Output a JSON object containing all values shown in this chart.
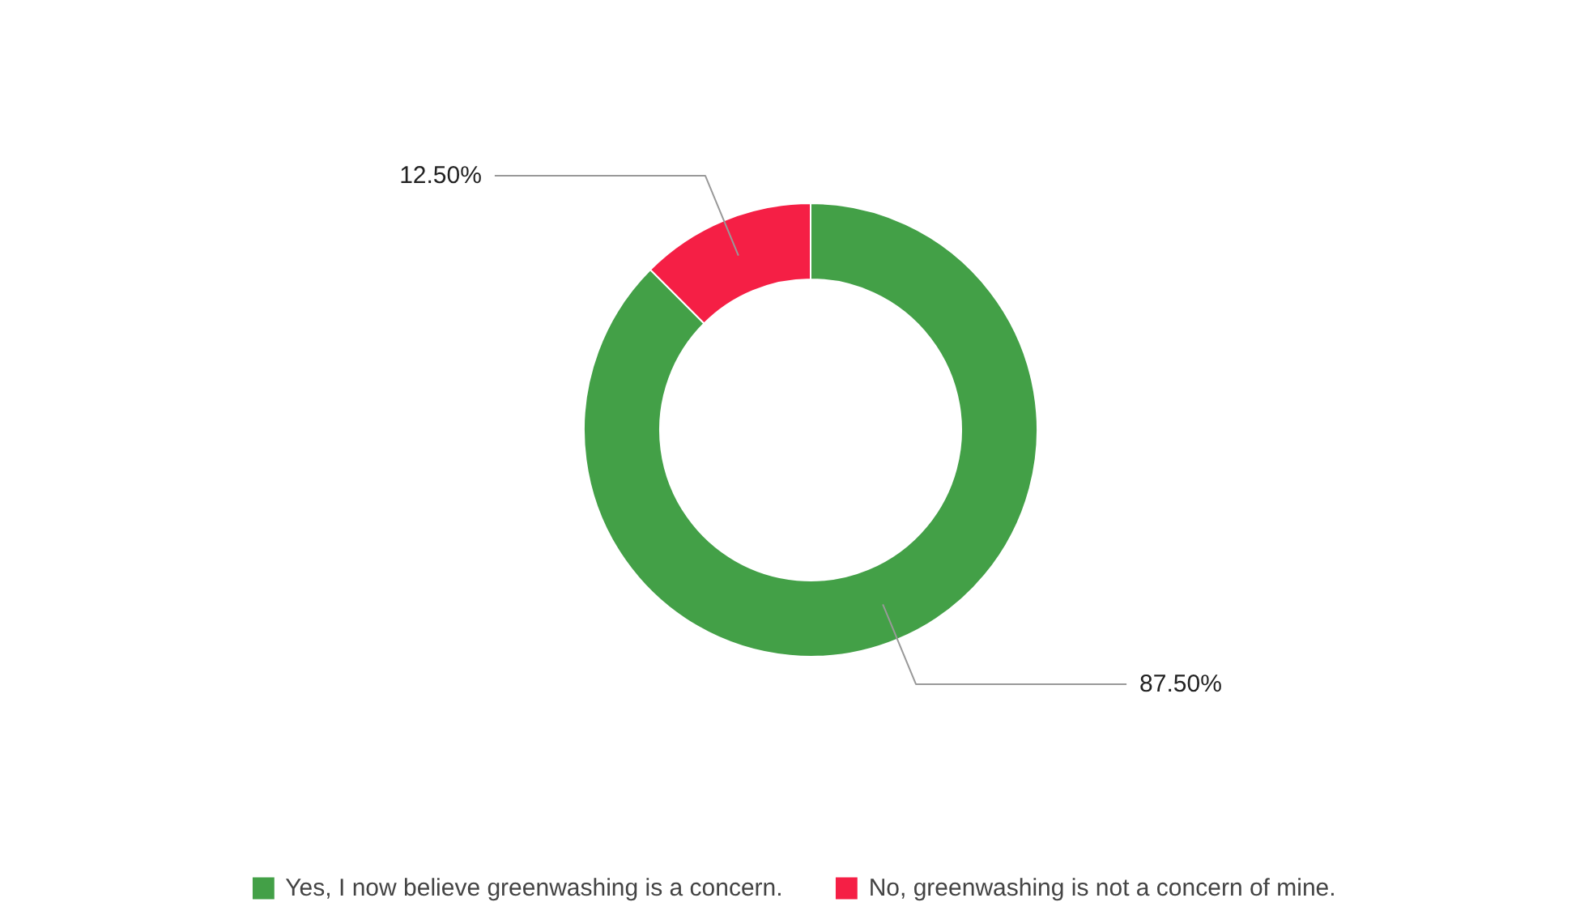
{
  "chart_data": {
    "type": "donut",
    "categories": [
      "Yes, I now believe greenwashing is a concern.",
      "No, greenwashing is not a concern of mine."
    ],
    "values": [
      87.5,
      12.5
    ],
    "colors": [
      "#43a047",
      "#f51f45"
    ],
    "value_labels": [
      "87.50%",
      "12.50%"
    ],
    "legend": "bottom"
  }
}
